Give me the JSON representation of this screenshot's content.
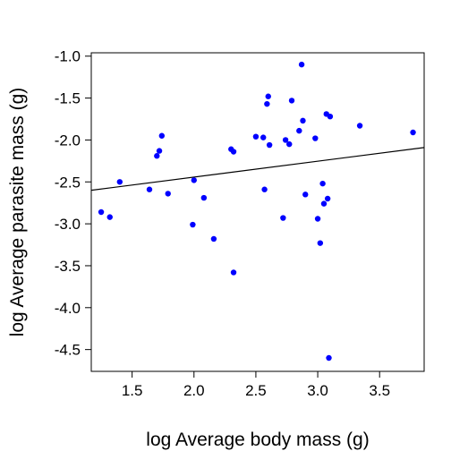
{
  "chart_data": {
    "type": "scatter",
    "xlabel": "log Average body mass (g)",
    "ylabel": "log Average parasite mass (g)",
    "xlim": [
      1.17,
      3.86
    ],
    "ylim": [
      -4.76,
      -0.96
    ],
    "x_ticks": [
      1.5,
      2.0,
      2.5,
      3.0,
      3.5
    ],
    "x_tick_labels": [
      "1.5",
      "2.0",
      "2.5",
      "3.0",
      "3.5"
    ],
    "y_ticks": [
      -1.0,
      -1.5,
      -2.0,
      -2.5,
      -3.0,
      -3.5,
      -4.0,
      -4.5
    ],
    "y_tick_labels": [
      "-1.0",
      "-1.5",
      "-2.0",
      "-2.5",
      "-3.0",
      "-3.5",
      "-4.0",
      "-4.5"
    ],
    "point_color": "#0000ff",
    "line_color": "#000000",
    "grid": false,
    "legend": "none",
    "points": [
      {
        "x": 1.25,
        "y": -2.86
      },
      {
        "x": 1.32,
        "y": -2.92
      },
      {
        "x": 1.4,
        "y": -2.5
      },
      {
        "x": 1.64,
        "y": -2.59
      },
      {
        "x": 1.7,
        "y": -2.19
      },
      {
        "x": 1.72,
        "y": -2.13
      },
      {
        "x": 1.74,
        "y": -1.95
      },
      {
        "x": 1.79,
        "y": -2.64
      },
      {
        "x": 1.99,
        "y": -3.01
      },
      {
        "x": 2.0,
        "y": -2.48
      },
      {
        "x": 2.08,
        "y": -2.69
      },
      {
        "x": 2.16,
        "y": -3.18
      },
      {
        "x": 2.3,
        "y": -2.11
      },
      {
        "x": 2.32,
        "y": -2.14
      },
      {
        "x": 2.32,
        "y": -3.58
      },
      {
        "x": 2.5,
        "y": -1.96
      },
      {
        "x": 2.56,
        "y": -1.97
      },
      {
        "x": 2.57,
        "y": -2.59
      },
      {
        "x": 2.59,
        "y": -1.57
      },
      {
        "x": 2.6,
        "y": -1.48
      },
      {
        "x": 2.61,
        "y": -2.06
      },
      {
        "x": 2.72,
        "y": -2.93
      },
      {
        "x": 2.74,
        "y": -2.0
      },
      {
        "x": 2.77,
        "y": -2.05
      },
      {
        "x": 2.79,
        "y": -1.53
      },
      {
        "x": 2.85,
        "y": -1.89
      },
      {
        "x": 2.87,
        "y": -1.1
      },
      {
        "x": 2.88,
        "y": -1.77
      },
      {
        "x": 2.9,
        "y": -2.65
      },
      {
        "x": 2.98,
        "y": -1.98
      },
      {
        "x": 3.0,
        "y": -2.94
      },
      {
        "x": 3.02,
        "y": -3.23
      },
      {
        "x": 3.04,
        "y": -2.52
      },
      {
        "x": 3.05,
        "y": -2.76
      },
      {
        "x": 3.07,
        "y": -1.69
      },
      {
        "x": 3.08,
        "y": -2.7
      },
      {
        "x": 3.09,
        "y": -4.6
      },
      {
        "x": 3.1,
        "y": -1.72
      },
      {
        "x": 3.34,
        "y": -1.83
      },
      {
        "x": 3.77,
        "y": -1.91
      }
    ],
    "regression_line": {
      "x": [
        1.17,
        3.86
      ],
      "y": [
        -2.6,
        -2.09
      ]
    }
  }
}
